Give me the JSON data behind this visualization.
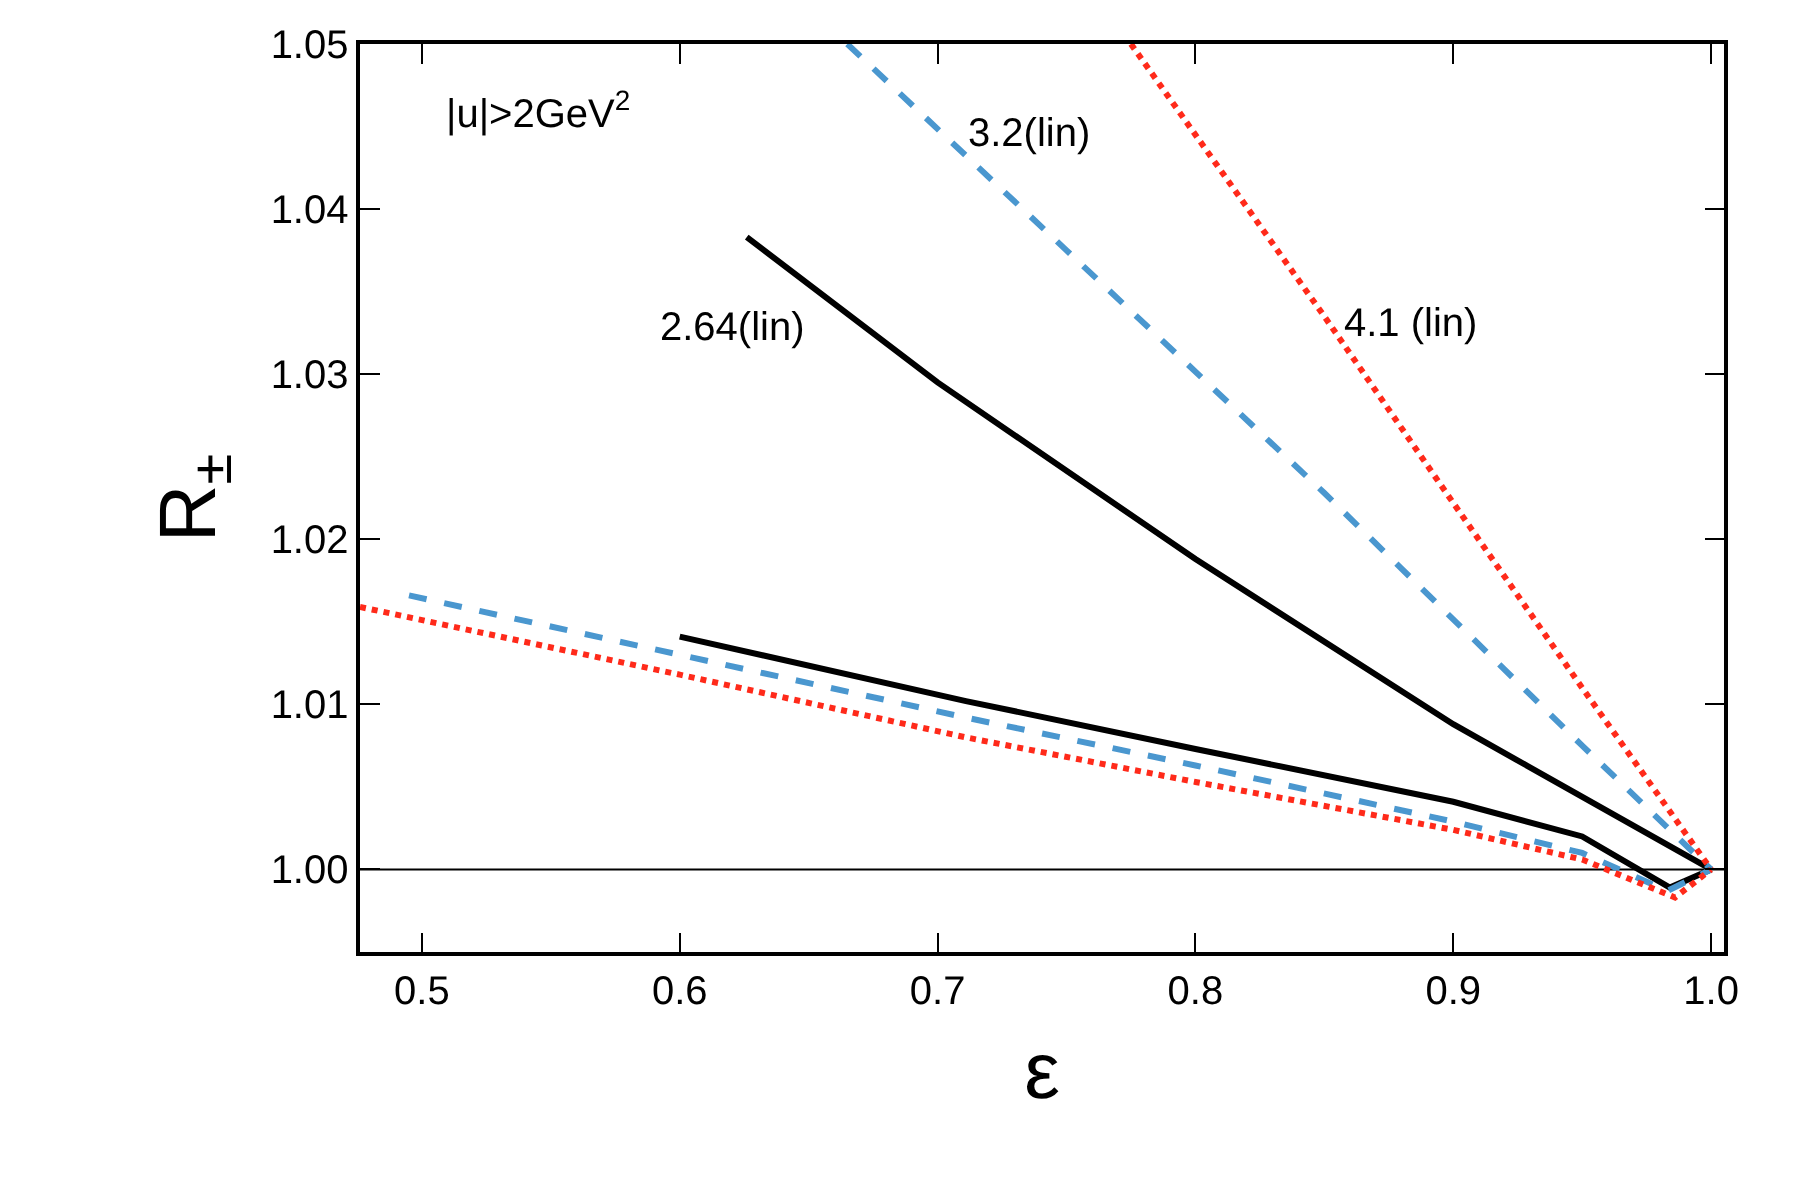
{
  "chart_data": {
    "type": "line",
    "xlabel": "ε",
    "ylabel": "R$_{±}$",
    "xlim": [
      0.476,
      1.005
    ],
    "ylim": [
      0.995,
      1.05
    ],
    "xticks": [
      0.5,
      0.6,
      0.7,
      0.8,
      0.9,
      {
        "value": 1.0,
        "label": "1.0"
      }
    ],
    "yticks": [
      {
        "value": 1.0,
        "label": "1.00"
      },
      {
        "value": 1.01,
        "label": "1.01"
      },
      {
        "value": 1.02,
        "label": "1.02"
      },
      {
        "value": 1.03,
        "label": "1.03"
      },
      {
        "value": 1.04,
        "label": "1.04"
      },
      {
        "value": 1.05,
        "label": "1.05"
      }
    ],
    "grid": false,
    "marker": "none",
    "ref_lines": [
      {
        "axis": "y",
        "value": 1.0,
        "color": "#000000",
        "line_style": "solid"
      }
    ],
    "annotations": [
      "|u|>2GeV$^{2}$",
      "2.64(lin)",
      "3.2(lin)",
      "4.1 (lin)"
    ],
    "series": [
      {
        "color": "#000000",
        "line_style": "solid",
        "x": [
          0.626,
          0.7,
          0.8,
          0.9,
          1.0
        ],
        "values": [
          1.0383,
          1.0295,
          1.0188,
          1.0088,
          1.0
        ]
      },
      {
        "color": "#4a97cf",
        "line_style": "dashed",
        "x": [
          0.665,
          0.75,
          0.85,
          0.95,
          1.0
        ],
        "values": [
          1.05,
          1.0375,
          1.0228,
          1.0075,
          1.0
        ]
      },
      {
        "color": "#ff2a1a",
        "line_style": "dotted",
        "x": [
          0.775,
          0.85,
          0.9,
          0.95,
          1.0
        ],
        "values": [
          1.05,
          1.0335,
          1.0222,
          1.011,
          1.0
        ]
      },
      {
        "color": "#000000",
        "line_style": "solid",
        "x": [
          0.6,
          0.711,
          0.8,
          0.9,
          0.95,
          0.984,
          1.0
        ],
        "values": [
          1.0141,
          1.0102,
          1.0073,
          1.0041,
          1.002,
          0.9989,
          1.0
        ]
      },
      {
        "color": "#4a97cf",
        "line_style": "dashed",
        "x": [
          0.495,
          0.6,
          0.711,
          0.8,
          0.9,
          0.95,
          0.983,
          1.0
        ],
        "values": [
          1.0166,
          1.013,
          1.0092,
          1.0063,
          1.0029,
          1.001,
          0.9987,
          1.0
        ]
      },
      {
        "color": "#ff2a1a",
        "line_style": "dotted",
        "x": [
          0.476,
          0.6,
          0.711,
          0.8,
          0.9,
          0.95,
          0.986,
          1.0
        ],
        "values": [
          1.0159,
          1.0118,
          1.008,
          1.0053,
          1.0024,
          1.0006,
          0.9983,
          1.0
        ]
      }
    ]
  }
}
